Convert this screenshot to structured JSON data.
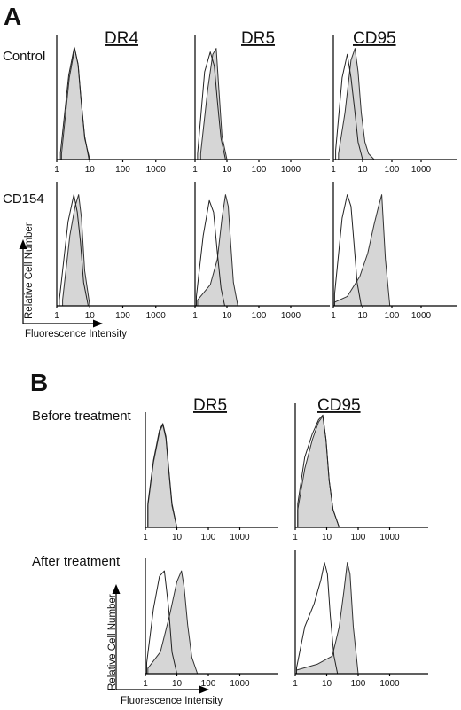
{
  "figure": {
    "panel_a_letter": "A",
    "panel_b_letter": "B"
  },
  "chart_data": [
    {
      "panel": "A",
      "row": "Control",
      "column": "DR4",
      "type": "area",
      "x_scale": "log",
      "xlim": [
        1,
        10000
      ],
      "x_ticks": [
        "1",
        "10",
        "100",
        "1000"
      ],
      "series": [
        {
          "role": "filled",
          "x": [
            1.4,
            2.4,
            3.5,
            4.5,
            5.5,
            7,
            10
          ],
          "y": [
            5,
            70,
            95,
            80,
            50,
            18,
            0
          ]
        },
        {
          "role": "open",
          "x": [
            1.3,
            2.3,
            3.4,
            4.4,
            5.4,
            7,
            9.5
          ],
          "y": [
            6,
            72,
            96,
            82,
            52,
            20,
            0
          ]
        }
      ]
    },
    {
      "panel": "A",
      "row": "Control",
      "column": "DR5",
      "type": "area",
      "x_scale": "log",
      "xlim": [
        1,
        10000
      ],
      "x_ticks": [
        "1",
        "10",
        "100",
        "1000"
      ],
      "series": [
        {
          "role": "filled",
          "x": [
            1.5,
            2.5,
            3.6,
            4.6,
            5.6,
            7,
            10
          ],
          "y": [
            5,
            60,
            90,
            95,
            60,
            20,
            0
          ]
        },
        {
          "role": "open",
          "x": [
            1.2,
            2,
            3,
            4,
            5,
            6.5,
            9
          ],
          "y": [
            5,
            75,
            92,
            80,
            50,
            18,
            0
          ]
        }
      ]
    },
    {
      "panel": "A",
      "row": "Control",
      "column": "CD95",
      "type": "area",
      "x_scale": "log",
      "xlim": [
        1,
        10000
      ],
      "x_ticks": [
        "1",
        "10",
        "100",
        "1000"
      ],
      "series": [
        {
          "role": "filled",
          "x": [
            1.5,
            2.5,
            4,
            5.5,
            7,
            9,
            12,
            16,
            25
          ],
          "y": [
            5,
            40,
            85,
            95,
            75,
            40,
            15,
            5,
            0
          ]
        },
        {
          "role": "open",
          "x": [
            1.2,
            2,
            3,
            4,
            5.5,
            7,
            10
          ],
          "y": [
            8,
            70,
            90,
            70,
            40,
            15,
            0
          ]
        }
      ]
    },
    {
      "panel": "A",
      "row": "CD154",
      "column": "DR4",
      "type": "area",
      "x_scale": "log",
      "xlim": [
        1,
        10000
      ],
      "x_ticks": [
        "1",
        "10",
        "100",
        "1000"
      ],
      "series": [
        {
          "role": "filled",
          "x": [
            1.5,
            2.5,
            3.6,
            4.6,
            5.6,
            7,
            10
          ],
          "y": [
            5,
            60,
            85,
            95,
            75,
            30,
            0
          ]
        },
        {
          "role": "open",
          "x": [
            1.2,
            2.2,
            3.3,
            4.2,
            5.2,
            6.5,
            9
          ],
          "y": [
            5,
            72,
            95,
            80,
            55,
            20,
            0
          ]
        }
      ]
    },
    {
      "panel": "A",
      "row": "CD154",
      "column": "DR5",
      "type": "area",
      "x_scale": "log",
      "xlim": [
        1,
        10000
      ],
      "x_ticks": [
        "1",
        "10",
        "100",
        "1000"
      ],
      "series": [
        {
          "role": "filled",
          "x": [
            1.2,
            3,
            5,
            7,
            9,
            11,
            13,
            16,
            22
          ],
          "y": [
            5,
            18,
            40,
            75,
            95,
            85,
            55,
            20,
            0
          ]
        },
        {
          "role": "open",
          "x": [
            1.1,
            1.8,
            2.8,
            3.8,
            5,
            6.5,
            8.5
          ],
          "y": [
            8,
            60,
            90,
            80,
            45,
            15,
            0
          ]
        }
      ]
    },
    {
      "panel": "A",
      "row": "CD154",
      "column": "CD95",
      "type": "area",
      "x_scale": "log",
      "xlim": [
        1,
        10000
      ],
      "x_ticks": [
        "1",
        "10",
        "100",
        "1000"
      ],
      "series": [
        {
          "role": "filled",
          "x": [
            1.1,
            3,
            8,
            15,
            25,
            35,
            45,
            60,
            85
          ],
          "y": [
            3,
            8,
            25,
            45,
            70,
            85,
            95,
            40,
            0
          ]
        },
        {
          "role": "open",
          "x": [
            1.1,
            2,
            3,
            4,
            5,
            6.5,
            9
          ],
          "y": [
            10,
            75,
            95,
            85,
            55,
            20,
            0
          ]
        }
      ]
    },
    {
      "panel": "B",
      "row": "Before treatment",
      "column": "DR5",
      "type": "area",
      "x_scale": "log",
      "xlim": [
        1,
        10000
      ],
      "x_ticks": [
        "1",
        "10",
        "100",
        "1000"
      ],
      "series": [
        {
          "role": "filled",
          "x": [
            1.2,
            1.8,
            2.8,
            3.6,
            4.5,
            5.6,
            7,
            10
          ],
          "y": [
            20,
            60,
            88,
            95,
            82,
            50,
            20,
            0
          ]
        },
        {
          "role": "open",
          "x": [
            1.2,
            1.8,
            2.8,
            3.6,
            4.5,
            5.6,
            7,
            10
          ],
          "y": [
            22,
            62,
            90,
            96,
            84,
            52,
            22,
            0
          ]
        }
      ]
    },
    {
      "panel": "B",
      "row": "Before treatment",
      "column": "CD95",
      "type": "area",
      "x_scale": "log",
      "xlim": [
        1,
        10000
      ],
      "x_ticks": [
        "1",
        "10",
        "100",
        "1000"
      ],
      "series": [
        {
          "role": "filled",
          "x": [
            1.2,
            2,
            3.5,
            5.5,
            7.5,
            9.5,
            12,
            16,
            25
          ],
          "y": [
            15,
            50,
            75,
            90,
            95,
            75,
            40,
            15,
            0
          ]
        },
        {
          "role": "open",
          "x": [
            1.2,
            2,
            3.5,
            5.5,
            7.5,
            9.5,
            12,
            16,
            25
          ],
          "y": [
            20,
            60,
            80,
            92,
            96,
            75,
            40,
            15,
            0
          ]
        }
      ]
    },
    {
      "panel": "B",
      "row": "After treatment",
      "column": "DR5",
      "type": "area",
      "x_scale": "log",
      "xlim": [
        1,
        10000
      ],
      "x_ticks": [
        "1",
        "10",
        "100",
        "1000"
      ],
      "series": [
        {
          "role": "filled",
          "x": [
            1.2,
            3,
            6,
            10,
            14,
            17,
            22,
            30,
            45
          ],
          "y": [
            5,
            20,
            55,
            85,
            95,
            80,
            45,
            15,
            0
          ]
        },
        {
          "role": "open",
          "x": [
            1.1,
            1.8,
            2.8,
            4,
            5.5,
            7,
            10
          ],
          "y": [
            10,
            60,
            90,
            95,
            60,
            20,
            0
          ]
        }
      ]
    },
    {
      "panel": "B",
      "row": "After treatment",
      "column": "CD95",
      "type": "area",
      "x_scale": "log",
      "xlim": [
        1,
        10000
      ],
      "x_ticks": [
        "1",
        "10",
        "100",
        "1000"
      ],
      "series": [
        {
          "role": "filled",
          "x": [
            1.1,
            5,
            15,
            25,
            35,
            45,
            55,
            70,
            100
          ],
          "y": [
            3,
            8,
            15,
            40,
            70,
            95,
            85,
            40,
            0
          ]
        },
        {
          "role": "open",
          "x": [
            1.1,
            2,
            4,
            6.5,
            8.5,
            10.5,
            13,
            17,
            22
          ],
          "y": [
            5,
            40,
            60,
            80,
            95,
            85,
            50,
            15,
            0
          ]
        }
      ]
    }
  ],
  "labels": {
    "a_col_titles": [
      "DR4",
      "DR5",
      "CD95"
    ],
    "a_row_labels": [
      "Control",
      "CD154"
    ],
    "a_y_axis_title": "Relative Cell Number",
    "a_x_axis_title": "Fluorescence Intensity",
    "b_col_titles": [
      "DR5",
      "CD95"
    ],
    "b_row_labels": [
      "Before treatment",
      "After treatment"
    ],
    "b_y_axis_title": "Relative Cell Number",
    "b_x_axis_title": "Fluorescence Intensity"
  }
}
